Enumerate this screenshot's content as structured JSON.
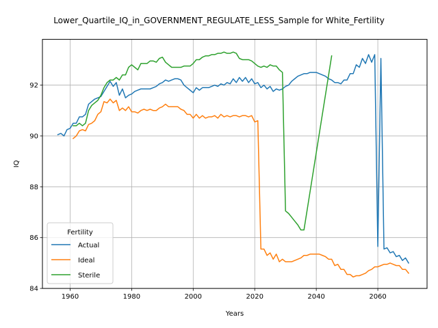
{
  "chart_data": {
    "type": "line",
    "title": "Lower_Quartile_IQ_in_GOVERNMENT_REGULATE_LESS_Sample for White_Fertility",
    "xlabel": "Years",
    "ylabel": "IQ",
    "xlim": [
      1951,
      2076
    ],
    "ylim": [
      84.0,
      93.8
    ],
    "xticks": [
      1960,
      1980,
      2000,
      2020,
      2040,
      2060
    ],
    "yticks": [
      84,
      86,
      88,
      90,
      92
    ],
    "grid": true,
    "legend": {
      "title": "Fertility",
      "placement": "lower-left"
    },
    "series": [
      {
        "name": "Actual",
        "color": "#1f77b4",
        "points": [
          [
            1956,
            90.05
          ],
          [
            1957,
            90.1
          ],
          [
            1958,
            90.0
          ],
          [
            1959,
            90.25
          ],
          [
            1960,
            90.3
          ],
          [
            1961,
            90.5
          ],
          [
            1962,
            90.5
          ],
          [
            1963,
            90.75
          ],
          [
            1964,
            90.75
          ],
          [
            1965,
            90.85
          ],
          [
            1966,
            91.25
          ],
          [
            1967,
            91.35
          ],
          [
            1968,
            91.45
          ],
          [
            1969,
            91.5
          ],
          [
            1970,
            91.55
          ],
          [
            1971,
            91.75
          ],
          [
            1972,
            91.95
          ],
          [
            1973,
            92.15
          ],
          [
            1974,
            91.95
          ],
          [
            1975,
            92.1
          ],
          [
            1976,
            91.6
          ],
          [
            1977,
            91.85
          ],
          [
            1978,
            91.5
          ],
          [
            1979,
            91.6
          ],
          [
            1980,
            91.65
          ],
          [
            1981,
            91.75
          ],
          [
            1982,
            91.8
          ],
          [
            1983,
            91.85
          ],
          [
            1984,
            91.85
          ],
          [
            1985,
            91.85
          ],
          [
            1986,
            91.85
          ],
          [
            1987,
            91.9
          ],
          [
            1988,
            91.95
          ],
          [
            1989,
            92.05
          ],
          [
            1990,
            92.1
          ],
          [
            1991,
            92.2
          ],
          [
            1992,
            92.15
          ],
          [
            1993,
            92.2
          ],
          [
            1994,
            92.25
          ],
          [
            1995,
            92.25
          ],
          [
            1996,
            92.2
          ],
          [
            1997,
            92.0
          ],
          [
            1998,
            91.9
          ],
          [
            1999,
            91.8
          ],
          [
            2000,
            91.7
          ],
          [
            2001,
            91.9
          ],
          [
            2002,
            91.8
          ],
          [
            2003,
            91.9
          ],
          [
            2004,
            91.9
          ],
          [
            2005,
            91.9
          ],
          [
            2006,
            91.95
          ],
          [
            2007,
            92.0
          ],
          [
            2008,
            91.95
          ],
          [
            2009,
            92.05
          ],
          [
            2010,
            92.0
          ],
          [
            2011,
            92.1
          ],
          [
            2012,
            92.05
          ],
          [
            2013,
            92.25
          ],
          [
            2014,
            92.1
          ],
          [
            2015,
            92.3
          ],
          [
            2016,
            92.15
          ],
          [
            2017,
            92.3
          ],
          [
            2018,
            92.1
          ],
          [
            2019,
            92.25
          ],
          [
            2020,
            92.05
          ],
          [
            2021,
            92.1
          ],
          [
            2022,
            91.9
          ],
          [
            2023,
            92.0
          ],
          [
            2024,
            91.85
          ],
          [
            2025,
            91.95
          ],
          [
            2026,
            91.75
          ],
          [
            2027,
            91.85
          ],
          [
            2028,
            91.8
          ],
          [
            2029,
            91.85
          ],
          [
            2030,
            91.95
          ],
          [
            2031,
            92.0
          ],
          [
            2032,
            92.15
          ],
          [
            2033,
            92.25
          ],
          [
            2034,
            92.35
          ],
          [
            2035,
            92.4
          ],
          [
            2036,
            92.45
          ],
          [
            2037,
            92.45
          ],
          [
            2038,
            92.5
          ],
          [
            2039,
            92.5
          ],
          [
            2040,
            92.5
          ],
          [
            2041,
            92.45
          ],
          [
            2042,
            92.4
          ],
          [
            2043,
            92.35
          ],
          [
            2044,
            92.25
          ],
          [
            2045,
            92.2
          ],
          [
            2046,
            92.1
          ],
          [
            2047,
            92.1
          ],
          [
            2048,
            92.05
          ],
          [
            2049,
            92.2
          ],
          [
            2050,
            92.2
          ],
          [
            2051,
            92.45
          ],
          [
            2052,
            92.45
          ],
          [
            2053,
            92.8
          ],
          [
            2054,
            92.7
          ],
          [
            2055,
            93.05
          ],
          [
            2056,
            92.85
          ],
          [
            2057,
            93.2
          ],
          [
            2058,
            92.9
          ],
          [
            2059,
            93.2
          ],
          [
            2060,
            85.65
          ],
          [
            2061,
            93.05
          ],
          [
            2062,
            85.55
          ],
          [
            2063,
            85.6
          ],
          [
            2064,
            85.4
          ],
          [
            2065,
            85.45
          ],
          [
            2066,
            85.25
          ],
          [
            2067,
            85.3
          ],
          [
            2068,
            85.1
          ],
          [
            2069,
            85.2
          ],
          [
            2070,
            85.0
          ]
        ]
      },
      {
        "name": "Ideal",
        "color": "#ff7f0e",
        "points": [
          [
            1961,
            89.9
          ],
          [
            1962,
            90.0
          ],
          [
            1963,
            90.2
          ],
          [
            1964,
            90.25
          ],
          [
            1965,
            90.2
          ],
          [
            1966,
            90.45
          ],
          [
            1967,
            90.5
          ],
          [
            1968,
            90.6
          ],
          [
            1969,
            90.85
          ],
          [
            1970,
            90.95
          ],
          [
            1971,
            91.35
          ],
          [
            1972,
            91.3
          ],
          [
            1973,
            91.45
          ],
          [
            1974,
            91.3
          ],
          [
            1975,
            91.4
          ],
          [
            1976,
            91.0
          ],
          [
            1977,
            91.1
          ],
          [
            1978,
            91.0
          ],
          [
            1979,
            91.15
          ],
          [
            1980,
            90.95
          ],
          [
            1981,
            90.95
          ],
          [
            1982,
            90.9
          ],
          [
            1983,
            91.0
          ],
          [
            1984,
            91.05
          ],
          [
            1985,
            91.0
          ],
          [
            1986,
            91.05
          ],
          [
            1987,
            91.0
          ],
          [
            1988,
            91.0
          ],
          [
            1989,
            91.1
          ],
          [
            1990,
            91.15
          ],
          [
            1991,
            91.25
          ],
          [
            1992,
            91.15
          ],
          [
            1993,
            91.15
          ],
          [
            1994,
            91.15
          ],
          [
            1995,
            91.15
          ],
          [
            1996,
            91.05
          ],
          [
            1997,
            91.0
          ],
          [
            1998,
            90.85
          ],
          [
            1999,
            90.85
          ],
          [
            2000,
            90.7
          ],
          [
            2001,
            90.85
          ],
          [
            2002,
            90.7
          ],
          [
            2003,
            90.8
          ],
          [
            2004,
            90.7
          ],
          [
            2005,
            90.75
          ],
          [
            2006,
            90.75
          ],
          [
            2007,
            90.8
          ],
          [
            2008,
            90.7
          ],
          [
            2009,
            90.85
          ],
          [
            2010,
            90.75
          ],
          [
            2011,
            90.8
          ],
          [
            2012,
            90.75
          ],
          [
            2013,
            90.8
          ],
          [
            2014,
            90.8
          ],
          [
            2015,
            90.75
          ],
          [
            2016,
            90.8
          ],
          [
            2017,
            90.8
          ],
          [
            2018,
            90.75
          ],
          [
            2019,
            90.8
          ],
          [
            2020,
            90.55
          ],
          [
            2021,
            90.6
          ],
          [
            2022,
            85.55
          ],
          [
            2023,
            85.55
          ],
          [
            2024,
            85.3
          ],
          [
            2025,
            85.4
          ],
          [
            2026,
            85.15
          ],
          [
            2027,
            85.35
          ],
          [
            2028,
            85.05
          ],
          [
            2029,
            85.15
          ],
          [
            2030,
            85.05
          ],
          [
            2031,
            85.05
          ],
          [
            2032,
            85.05
          ],
          [
            2033,
            85.1
          ],
          [
            2034,
            85.15
          ],
          [
            2035,
            85.2
          ],
          [
            2036,
            85.3
          ],
          [
            2037,
            85.3
          ],
          [
            2038,
            85.35
          ],
          [
            2039,
            85.35
          ],
          [
            2040,
            85.35
          ],
          [
            2041,
            85.35
          ],
          [
            2042,
            85.3
          ],
          [
            2043,
            85.25
          ],
          [
            2044,
            85.15
          ],
          [
            2045,
            85.15
          ],
          [
            2046,
            84.9
          ],
          [
            2047,
            84.95
          ],
          [
            2048,
            84.75
          ],
          [
            2049,
            84.75
          ],
          [
            2050,
            84.55
          ],
          [
            2051,
            84.55
          ],
          [
            2052,
            84.45
          ],
          [
            2053,
            84.5
          ],
          [
            2054,
            84.5
          ],
          [
            2055,
            84.55
          ],
          [
            2056,
            84.6
          ],
          [
            2057,
            84.7
          ],
          [
            2058,
            84.75
          ],
          [
            2059,
            84.85
          ],
          [
            2060,
            84.85
          ],
          [
            2061,
            84.9
          ],
          [
            2062,
            84.95
          ],
          [
            2063,
            84.95
          ],
          [
            2064,
            85.0
          ],
          [
            2065,
            84.95
          ],
          [
            2066,
            84.9
          ],
          [
            2067,
            84.9
          ],
          [
            2068,
            84.75
          ],
          [
            2069,
            84.75
          ],
          [
            2070,
            84.6
          ]
        ]
      },
      {
        "name": "Sterile",
        "color": "#2ca02c",
        "points": [
          [
            1961,
            90.4
          ],
          [
            1962,
            90.4
          ],
          [
            1963,
            90.5
          ],
          [
            1964,
            90.4
          ],
          [
            1965,
            90.5
          ],
          [
            1966,
            91.0
          ],
          [
            1967,
            91.2
          ],
          [
            1968,
            91.3
          ],
          [
            1969,
            91.4
          ],
          [
            1970,
            91.6
          ],
          [
            1971,
            91.9
          ],
          [
            1972,
            92.1
          ],
          [
            1973,
            92.2
          ],
          [
            1974,
            92.2
          ],
          [
            1975,
            92.3
          ],
          [
            1976,
            92.2
          ],
          [
            1977,
            92.4
          ],
          [
            1978,
            92.4
          ],
          [
            1979,
            92.7
          ],
          [
            1980,
            92.8
          ],
          [
            1981,
            92.7
          ],
          [
            1982,
            92.6
          ],
          [
            1983,
            92.85
          ],
          [
            1984,
            92.85
          ],
          [
            1985,
            92.85
          ],
          [
            1986,
            92.95
          ],
          [
            1987,
            92.95
          ],
          [
            1988,
            92.9
          ],
          [
            1989,
            93.05
          ],
          [
            1990,
            93.1
          ],
          [
            1991,
            92.9
          ],
          [
            1992,
            92.8
          ],
          [
            1993,
            92.7
          ],
          [
            1994,
            92.7
          ],
          [
            1995,
            92.7
          ],
          [
            1996,
            92.7
          ],
          [
            1997,
            92.75
          ],
          [
            1998,
            92.75
          ],
          [
            1999,
            92.75
          ],
          [
            2000,
            92.85
          ],
          [
            2001,
            93.0
          ],
          [
            2002,
            93.0
          ],
          [
            2003,
            93.1
          ],
          [
            2004,
            93.15
          ],
          [
            2005,
            93.15
          ],
          [
            2006,
            93.2
          ],
          [
            2007,
            93.2
          ],
          [
            2008,
            93.25
          ],
          [
            2009,
            93.25
          ],
          [
            2010,
            93.3
          ],
          [
            2011,
            93.25
          ],
          [
            2012,
            93.25
          ],
          [
            2013,
            93.3
          ],
          [
            2014,
            93.25
          ],
          [
            2015,
            93.05
          ],
          [
            2016,
            93.0
          ],
          [
            2017,
            93.0
          ],
          [
            2018,
            93.0
          ],
          [
            2019,
            92.95
          ],
          [
            2020,
            92.85
          ],
          [
            2021,
            92.75
          ],
          [
            2022,
            92.7
          ],
          [
            2023,
            92.75
          ],
          [
            2024,
            92.7
          ],
          [
            2025,
            92.8
          ],
          [
            2026,
            92.75
          ],
          [
            2027,
            92.75
          ],
          [
            2028,
            92.6
          ],
          [
            2029,
            92.5
          ],
          [
            2030,
            87.05
          ],
          [
            2031,
            86.95
          ],
          [
            2032,
            86.8
          ],
          [
            2033,
            86.65
          ],
          [
            2034,
            86.5
          ],
          [
            2035,
            86.3
          ],
          [
            2036,
            86.3
          ],
          [
            2045,
            93.15
          ]
        ]
      }
    ]
  }
}
